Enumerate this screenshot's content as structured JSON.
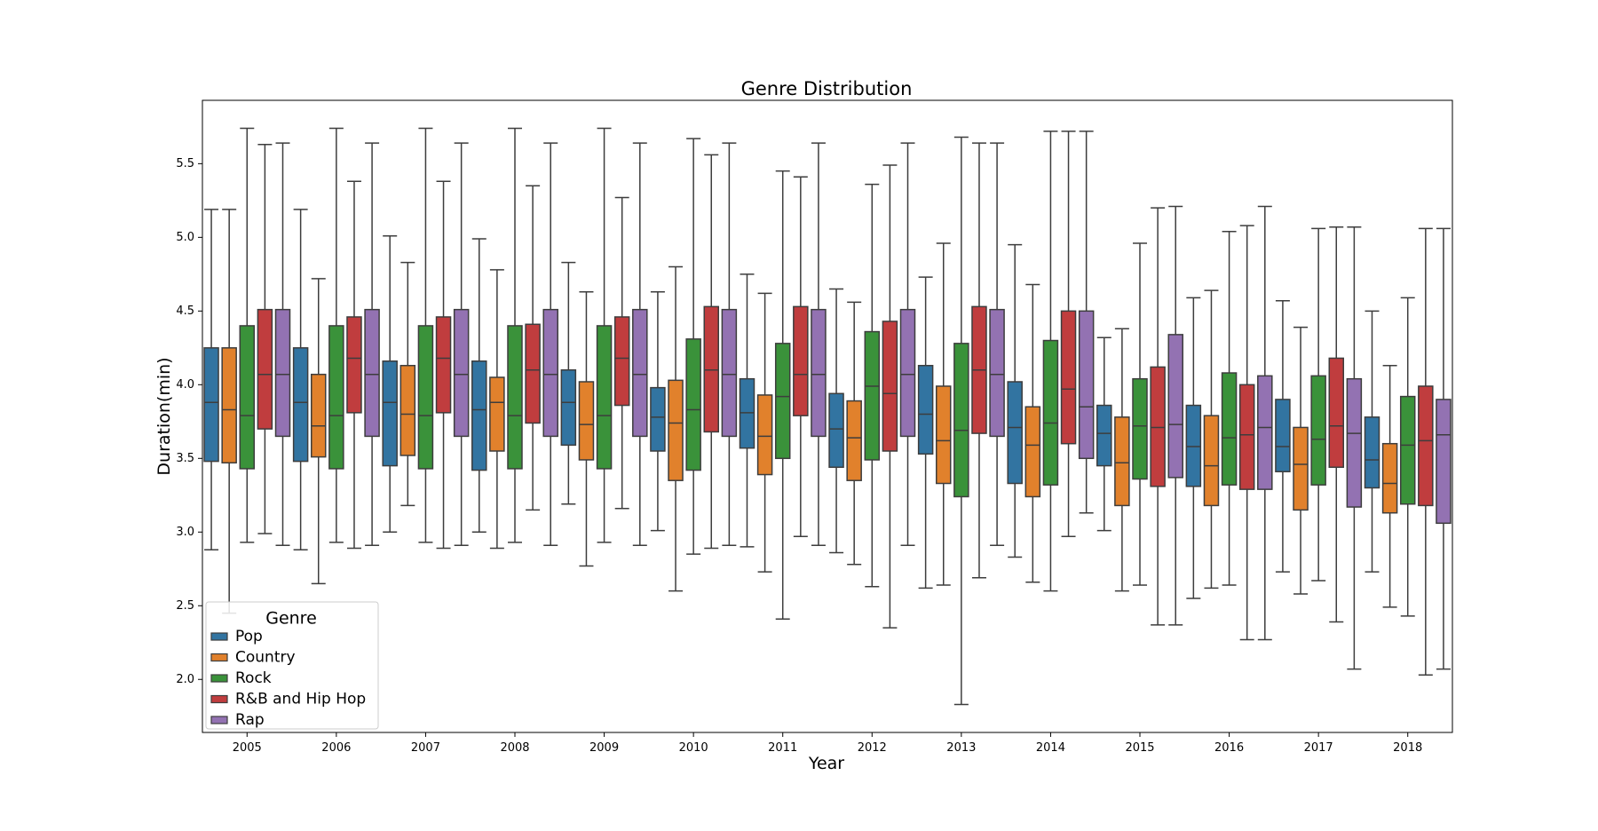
{
  "chart_data": {
    "type": "box",
    "title": "Genre Distribution",
    "xlabel": "Year",
    "ylabel": "Duration(min)",
    "ylim": [
      1.64,
      5.93
    ],
    "yticks": [
      "2.0",
      "2.5",
      "3.0",
      "3.5",
      "4.0",
      "4.5",
      "5.0",
      "5.5"
    ],
    "grid": false,
    "legend": {
      "title": "Genre",
      "position": "lower-left"
    },
    "categories": [
      "2005",
      "2006",
      "2007",
      "2008",
      "2009",
      "2010",
      "2011",
      "2012",
      "2013",
      "2014",
      "2015",
      "2016",
      "2017",
      "2018"
    ],
    "series": [
      {
        "name": "Pop",
        "color": "#3274a1",
        "boxes": [
          {
            "whislo": 2.88,
            "q1": 3.48,
            "med": 3.88,
            "q3": 4.25,
            "whishi": 5.19
          },
          {
            "whislo": 2.88,
            "q1": 3.48,
            "med": 3.88,
            "q3": 4.25,
            "whishi": 5.19
          },
          {
            "whislo": 3.0,
            "q1": 3.45,
            "med": 3.88,
            "q3": 4.16,
            "whishi": 5.01
          },
          {
            "whislo": 3.0,
            "q1": 3.42,
            "med": 3.83,
            "q3": 4.16,
            "whishi": 4.99
          },
          {
            "whislo": 3.19,
            "q1": 3.59,
            "med": 3.88,
            "q3": 4.1,
            "whishi": 4.83
          },
          {
            "whislo": 3.01,
            "q1": 3.55,
            "med": 3.78,
            "q3": 3.98,
            "whishi": 4.63
          },
          {
            "whislo": 2.9,
            "q1": 3.57,
            "med": 3.81,
            "q3": 4.04,
            "whishi": 4.75
          },
          {
            "whislo": 2.86,
            "q1": 3.44,
            "med": 3.7,
            "q3": 3.94,
            "whishi": 4.65
          },
          {
            "whislo": 2.62,
            "q1": 3.53,
            "med": 3.8,
            "q3": 4.13,
            "whishi": 4.73
          },
          {
            "whislo": 2.83,
            "q1": 3.33,
            "med": 3.71,
            "q3": 4.02,
            "whishi": 4.95
          },
          {
            "whislo": 3.01,
            "q1": 3.45,
            "med": 3.67,
            "q3": 3.86,
            "whishi": 4.32
          },
          {
            "whislo": 2.55,
            "q1": 3.31,
            "med": 3.58,
            "q3": 3.86,
            "whishi": 4.59
          },
          {
            "whislo": 2.73,
            "q1": 3.41,
            "med": 3.58,
            "q3": 3.9,
            "whishi": 4.57
          },
          {
            "whislo": 2.73,
            "q1": 3.3,
            "med": 3.49,
            "q3": 3.78,
            "whishi": 4.5
          }
        ]
      },
      {
        "name": "Country",
        "color": "#e1812c",
        "boxes": [
          {
            "whislo": 2.45,
            "q1": 3.47,
            "med": 3.83,
            "q3": 4.25,
            "whishi": 5.19
          },
          {
            "whislo": 2.65,
            "q1": 3.51,
            "med": 3.72,
            "q3": 4.07,
            "whishi": 4.72
          },
          {
            "whislo": 3.18,
            "q1": 3.52,
            "med": 3.8,
            "q3": 4.13,
            "whishi": 4.83
          },
          {
            "whislo": 2.89,
            "q1": 3.55,
            "med": 3.88,
            "q3": 4.05,
            "whishi": 4.78
          },
          {
            "whislo": 2.77,
            "q1": 3.49,
            "med": 3.73,
            "q3": 4.02,
            "whishi": 4.63
          },
          {
            "whislo": 2.6,
            "q1": 3.35,
            "med": 3.74,
            "q3": 4.03,
            "whishi": 4.8
          },
          {
            "whislo": 2.73,
            "q1": 3.39,
            "med": 3.65,
            "q3": 3.93,
            "whishi": 4.62
          },
          {
            "whislo": 2.78,
            "q1": 3.35,
            "med": 3.64,
            "q3": 3.89,
            "whishi": 4.56
          },
          {
            "whislo": 2.64,
            "q1": 3.33,
            "med": 3.62,
            "q3": 3.99,
            "whishi": 4.96
          },
          {
            "whislo": 2.66,
            "q1": 3.24,
            "med": 3.59,
            "q3": 3.85,
            "whishi": 4.68
          },
          {
            "whislo": 2.6,
            "q1": 3.18,
            "med": 3.47,
            "q3": 3.78,
            "whishi": 4.38
          },
          {
            "whislo": 2.62,
            "q1": 3.18,
            "med": 3.45,
            "q3": 3.79,
            "whishi": 4.64
          },
          {
            "whislo": 2.58,
            "q1": 3.15,
            "med": 3.46,
            "q3": 3.71,
            "whishi": 4.39
          },
          {
            "whislo": 2.49,
            "q1": 3.13,
            "med": 3.33,
            "q3": 3.6,
            "whishi": 4.13
          }
        ]
      },
      {
        "name": "Rock",
        "color": "#3a923a",
        "boxes": [
          {
            "whislo": 2.93,
            "q1": 3.43,
            "med": 3.79,
            "q3": 4.4,
            "whishi": 5.74
          },
          {
            "whislo": 2.93,
            "q1": 3.43,
            "med": 3.79,
            "q3": 4.4,
            "whishi": 5.74
          },
          {
            "whislo": 2.93,
            "q1": 3.43,
            "med": 3.79,
            "q3": 4.4,
            "whishi": 5.74
          },
          {
            "whislo": 2.93,
            "q1": 3.43,
            "med": 3.79,
            "q3": 4.4,
            "whishi": 5.74
          },
          {
            "whislo": 2.93,
            "q1": 3.43,
            "med": 3.79,
            "q3": 4.4,
            "whishi": 5.74
          },
          {
            "whislo": 2.85,
            "q1": 3.42,
            "med": 3.83,
            "q3": 4.31,
            "whishi": 5.67
          },
          {
            "whislo": 2.41,
            "q1": 3.5,
            "med": 3.92,
            "q3": 4.28,
            "whishi": 5.45
          },
          {
            "whislo": 2.63,
            "q1": 3.49,
            "med": 3.99,
            "q3": 4.36,
            "whishi": 5.36
          },
          {
            "whislo": 1.83,
            "q1": 3.24,
            "med": 3.69,
            "q3": 4.28,
            "whishi": 5.68
          },
          {
            "whislo": 2.6,
            "q1": 3.32,
            "med": 3.74,
            "q3": 4.3,
            "whishi": 5.72
          },
          {
            "whislo": 2.64,
            "q1": 3.36,
            "med": 3.72,
            "q3": 4.04,
            "whishi": 4.96
          },
          {
            "whislo": 2.64,
            "q1": 3.32,
            "med": 3.64,
            "q3": 4.08,
            "whishi": 5.04
          },
          {
            "whislo": 2.67,
            "q1": 3.32,
            "med": 3.63,
            "q3": 4.06,
            "whishi": 5.06
          },
          {
            "whislo": 2.43,
            "q1": 3.19,
            "med": 3.59,
            "q3": 3.92,
            "whishi": 4.59
          }
        ]
      },
      {
        "name": "R&B and Hip Hop",
        "color": "#c03d3e",
        "boxes": [
          {
            "whislo": 2.99,
            "q1": 3.7,
            "med": 4.07,
            "q3": 4.51,
            "whishi": 5.63
          },
          {
            "whislo": 2.89,
            "q1": 3.81,
            "med": 4.18,
            "q3": 4.46,
            "whishi": 5.38
          },
          {
            "whislo": 2.89,
            "q1": 3.81,
            "med": 4.18,
            "q3": 4.46,
            "whishi": 5.38
          },
          {
            "whislo": 3.15,
            "q1": 3.74,
            "med": 4.1,
            "q3": 4.41,
            "whishi": 5.35
          },
          {
            "whislo": 3.16,
            "q1": 3.86,
            "med": 4.18,
            "q3": 4.46,
            "whishi": 5.27
          },
          {
            "whislo": 2.89,
            "q1": 3.68,
            "med": 4.1,
            "q3": 4.53,
            "whishi": 5.56
          },
          {
            "whislo": 2.97,
            "q1": 3.79,
            "med": 4.07,
            "q3": 4.53,
            "whishi": 5.41
          },
          {
            "whislo": 2.35,
            "q1": 3.55,
            "med": 3.94,
            "q3": 4.43,
            "whishi": 5.49
          },
          {
            "whislo": 2.69,
            "q1": 3.67,
            "med": 4.1,
            "q3": 4.53,
            "whishi": 5.64
          },
          {
            "whislo": 2.97,
            "q1": 3.6,
            "med": 3.97,
            "q3": 4.5,
            "whishi": 5.72
          },
          {
            "whislo": 2.37,
            "q1": 3.31,
            "med": 3.71,
            "q3": 4.12,
            "whishi": 5.2
          },
          {
            "whislo": 2.27,
            "q1": 3.29,
            "med": 3.66,
            "q3": 4.0,
            "whishi": 5.08
          },
          {
            "whislo": 2.39,
            "q1": 3.44,
            "med": 3.72,
            "q3": 4.18,
            "whishi": 5.07
          },
          {
            "whislo": 2.03,
            "q1": 3.18,
            "med": 3.62,
            "q3": 3.99,
            "whishi": 5.06
          }
        ]
      },
      {
        "name": "Rap",
        "color": "#9372b2",
        "boxes": [
          {
            "whislo": 2.91,
            "q1": 3.65,
            "med": 4.07,
            "q3": 4.51,
            "whishi": 5.64
          },
          {
            "whislo": 2.91,
            "q1": 3.65,
            "med": 4.07,
            "q3": 4.51,
            "whishi": 5.64
          },
          {
            "whislo": 2.91,
            "q1": 3.65,
            "med": 4.07,
            "q3": 4.51,
            "whishi": 5.64
          },
          {
            "whislo": 2.91,
            "q1": 3.65,
            "med": 4.07,
            "q3": 4.51,
            "whishi": 5.64
          },
          {
            "whislo": 2.91,
            "q1": 3.65,
            "med": 4.07,
            "q3": 4.51,
            "whishi": 5.64
          },
          {
            "whislo": 2.91,
            "q1": 3.65,
            "med": 4.07,
            "q3": 4.51,
            "whishi": 5.64
          },
          {
            "whislo": 2.91,
            "q1": 3.65,
            "med": 4.07,
            "q3": 4.51,
            "whishi": 5.64
          },
          {
            "whislo": 2.91,
            "q1": 3.65,
            "med": 4.07,
            "q3": 4.51,
            "whishi": 5.64
          },
          {
            "whislo": 2.91,
            "q1": 3.65,
            "med": 4.07,
            "q3": 4.51,
            "whishi": 5.64
          },
          {
            "whislo": 3.13,
            "q1": 3.5,
            "med": 3.85,
            "q3": 4.5,
            "whishi": 5.72
          },
          {
            "whislo": 2.37,
            "q1": 3.37,
            "med": 3.73,
            "q3": 4.34,
            "whishi": 5.21
          },
          {
            "whislo": 2.27,
            "q1": 3.29,
            "med": 3.71,
            "q3": 4.06,
            "whishi": 5.21
          },
          {
            "whislo": 2.07,
            "q1": 3.17,
            "med": 3.67,
            "q3": 4.04,
            "whishi": 5.07
          },
          {
            "whislo": 2.07,
            "q1": 3.06,
            "med": 3.66,
            "q3": 3.9,
            "whishi": 5.06
          }
        ]
      }
    ]
  }
}
